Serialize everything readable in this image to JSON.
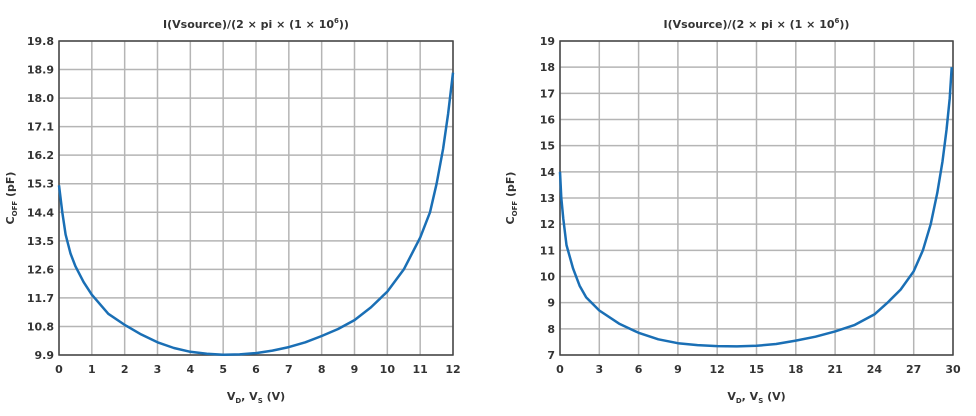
{
  "chart_data": [
    {
      "type": "line",
      "title": {
        "main": "I(Vsource)/(2 × pi × (1 × 10",
        "sup": "6",
        "end": "))"
      },
      "xlabel": {
        "a": "V",
        "a_sub": "D",
        "b": ", V",
        "b_sub": "S",
        "c": " (V)"
      },
      "ylabel": {
        "a": "C",
        "a_sub": "OFF",
        "b": " (pF)"
      },
      "xlim": [
        0,
        12
      ],
      "ylim": [
        9.9,
        19.8
      ],
      "xticks": [
        "0",
        "1",
        "2",
        "3",
        "4",
        "5",
        "6",
        "7",
        "8",
        "9",
        "10",
        "11",
        "12"
      ],
      "xtick_values": [
        0,
        1,
        2,
        3,
        4,
        5,
        6,
        7,
        8,
        9,
        10,
        11,
        12
      ],
      "yticks": [
        "9.9",
        "10.8",
        "11.7",
        "12.6",
        "13.5",
        "14.4",
        "15.3",
        "16.2",
        "17.1",
        "18.0",
        "18.9",
        "19.8"
      ],
      "ytick_values": [
        9.9,
        10.8,
        11.7,
        12.6,
        13.5,
        14.4,
        15.3,
        16.2,
        17.1,
        18.0,
        18.9,
        19.8
      ],
      "grid": true,
      "line_color": "#1a6fb5",
      "x": [
        0,
        0.1,
        0.2,
        0.35,
        0.5,
        0.75,
        1,
        1.5,
        2,
        2.5,
        3,
        3.5,
        4,
        4.5,
        5,
        5.5,
        6,
        6.5,
        7,
        7.5,
        8,
        8.5,
        9,
        9.5,
        10,
        10.5,
        11,
        11.3,
        11.5,
        11.7,
        11.85,
        12
      ],
      "y": [
        15.25,
        14.4,
        13.7,
        13.1,
        12.7,
        12.2,
        11.8,
        11.2,
        10.85,
        10.55,
        10.3,
        10.12,
        10.0,
        9.94,
        9.91,
        9.92,
        9.96,
        10.04,
        10.15,
        10.3,
        10.5,
        10.72,
        11.0,
        11.4,
        11.9,
        12.6,
        13.6,
        14.4,
        15.3,
        16.4,
        17.5,
        18.8
      ]
    },
    {
      "type": "line",
      "title": {
        "main": "I(Vsource)/(2 × pi × (1 × 10",
        "sup": "6",
        "end": "))"
      },
      "xlabel": {
        "a": "V",
        "a_sub": "D",
        "b": ", V",
        "b_sub": "S",
        "c": " (V)"
      },
      "ylabel": {
        "a": "C",
        "a_sub": "OFF",
        "b": " (pF)"
      },
      "xlim": [
        0,
        30
      ],
      "ylim": [
        7,
        19
      ],
      "xticks": [
        "0",
        "3",
        "6",
        "9",
        "12",
        "15",
        "18",
        "21",
        "24",
        "27",
        "30"
      ],
      "xtick_values": [
        0,
        3,
        6,
        9,
        12,
        15,
        18,
        21,
        24,
        27,
        30
      ],
      "yticks": [
        "7",
        "8",
        "9",
        "10",
        "11",
        "12",
        "13",
        "14",
        "15",
        "16",
        "17",
        "18",
        "19"
      ],
      "ytick_values": [
        7,
        8,
        9,
        10,
        11,
        12,
        13,
        14,
        15,
        16,
        17,
        18,
        19
      ],
      "grid": true,
      "line_color": "#1a6fb5",
      "x": [
        0,
        0.1,
        0.25,
        0.5,
        1,
        1.5,
        2,
        3,
        4.5,
        6,
        7.5,
        9,
        10.5,
        12,
        13.5,
        15,
        16.5,
        18,
        19.5,
        21,
        22.5,
        24,
        25,
        26,
        27,
        27.7,
        28.3,
        28.8,
        29.2,
        29.5,
        29.75,
        29.9
      ],
      "y": [
        14.0,
        13.0,
        12.2,
        11.2,
        10.3,
        9.65,
        9.2,
        8.7,
        8.2,
        7.85,
        7.6,
        7.45,
        7.38,
        7.34,
        7.33,
        7.35,
        7.42,
        7.55,
        7.7,
        7.9,
        8.15,
        8.55,
        9.0,
        9.5,
        10.2,
        11.0,
        12.0,
        13.2,
        14.4,
        15.6,
        16.8,
        18.0
      ]
    }
  ]
}
